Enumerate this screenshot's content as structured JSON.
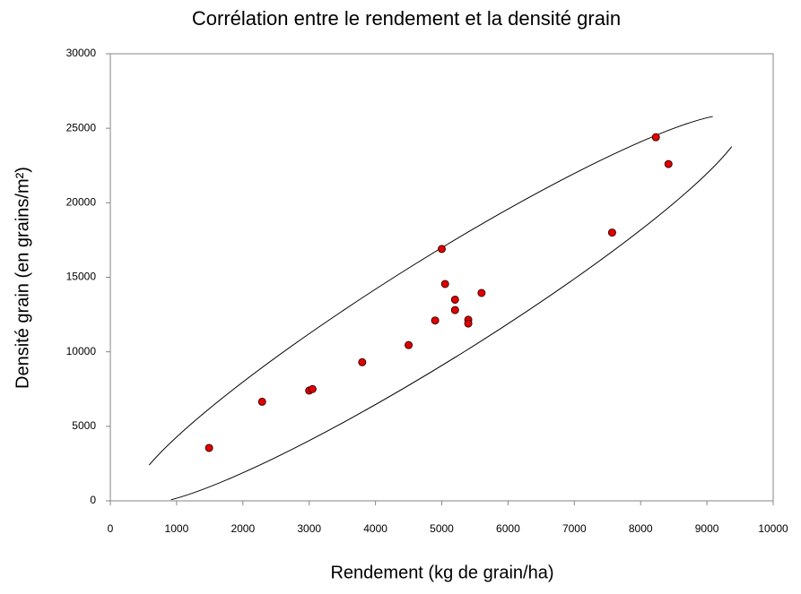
{
  "chart_data": {
    "type": "scatter",
    "title": "Corrélation entre le rendement  et la densité grain",
    "xlabel": "Rendement (kg de grain/ha)",
    "ylabel": "Densité grain (en grains/m²)",
    "x": [
      1490,
      2290,
      3000,
      3050,
      3800,
      4500,
      4900,
      5000,
      5050,
      5200,
      5200,
      5400,
      5400,
      5600,
      7570,
      8230,
      8420
    ],
    "values": [
      3550,
      6650,
      7400,
      7500,
      9300,
      10450,
      12100,
      16900,
      14550,
      12800,
      13500,
      12150,
      11900,
      13950,
      18000,
      24400,
      22600
    ],
    "color": "#e00000",
    "xlim": [
      0,
      10000
    ],
    "xticks": [
      0,
      1000,
      2000,
      3000,
      4000,
      5000,
      6000,
      7000,
      8000,
      9000,
      10000
    ],
    "ylim": [
      0,
      30000
    ],
    "yticks": [
      0,
      5000,
      10000,
      15000,
      20000,
      25000,
      30000
    ],
    "grid": false
  }
}
